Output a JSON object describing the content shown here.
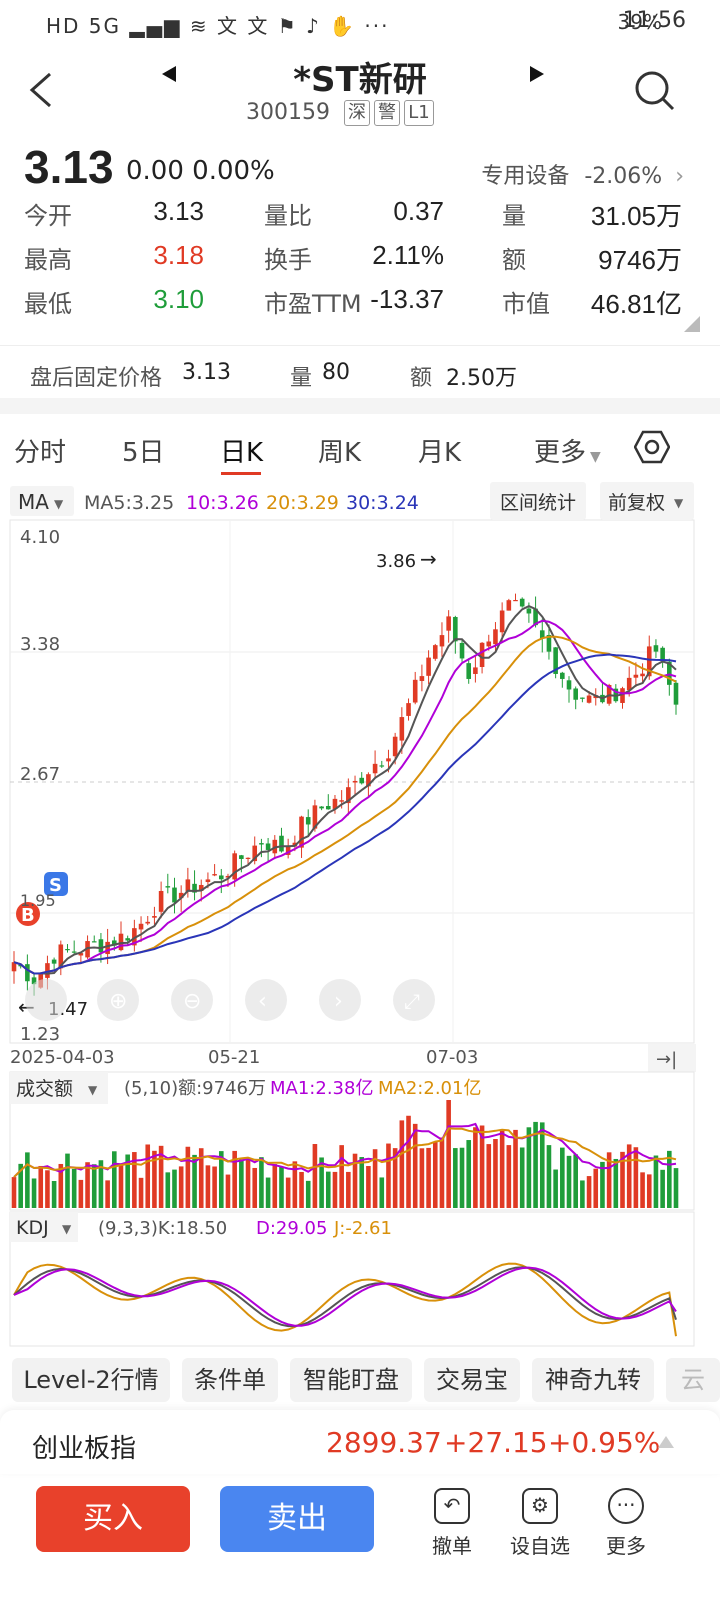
{
  "status": {
    "left_icons": "HD 5G ▂▄▆ ≋ 文 文 ⚑ ♪ ✋ ···",
    "battery": "39%",
    "time": "11:56"
  },
  "header": {
    "title": "*ST新研",
    "code": "300159",
    "tags": [
      "深",
      "警",
      "L1"
    ]
  },
  "quote": {
    "price": "3.13",
    "change": "0.00",
    "change_pct": "0.00%",
    "industry": "专用设备",
    "industry_pct": "-2.06%",
    "rows": [
      [
        {
          "l": "今开",
          "v": "3.13"
        },
        {
          "l": "量比",
          "v": "0.37"
        },
        {
          "l": "量",
          "v": "31.05万"
        }
      ],
      [
        {
          "l": "最高",
          "v": "3.18"
        },
        {
          "l": "换手",
          "v": "2.11%"
        },
        {
          "l": "额",
          "v": "9746万"
        }
      ],
      [
        {
          "l": "最低",
          "v": "3.10"
        },
        {
          "l": "市盈TTM",
          "v": "-13.37"
        },
        {
          "l": "市值",
          "v": "46.81亿"
        }
      ]
    ]
  },
  "afterhours": {
    "label": "盘后固定价格",
    "price": "3.13",
    "vol_label": "量",
    "vol": "80",
    "amt_label": "额",
    "amt": "2.50万"
  },
  "tabs": [
    "分时",
    "5日",
    "日K",
    "周K",
    "月K",
    "更多"
  ],
  "chart": {
    "ma_selector": "MA",
    "ma_legend": [
      "MA5:3.25",
      "10:3.26",
      "20:3.29",
      "30:3.24"
    ],
    "range_btn": "区间统计",
    "adjust_btn": "前复权",
    "price_labels": [
      "4.10",
      "3.38",
      "2.67",
      "1.23"
    ],
    "high_marker": "3.86",
    "low_marker": "1.47",
    "s_marker_value": "1.95",
    "date_labels": [
      "2025-04-03",
      "05-21",
      "07-03"
    ],
    "vol_selector": "成交额",
    "vol_legend": [
      "(5,10)额:9746万",
      "MA1:2.38亿",
      "MA2:2.01亿"
    ],
    "kdj_selector": "KDJ",
    "kdj_legend": [
      "(9,3,3)K:18.50",
      "D:29.05",
      "J:-2.61"
    ]
  },
  "chart_data": {
    "type": "candlestick",
    "x_range": [
      "2025-04-03",
      "2025-08-26"
    ],
    "x_ticks": [
      "2025-04-03",
      "05-21",
      "07-03"
    ],
    "ylim": [
      1.23,
      4.1
    ],
    "y_ticks": [
      4.1,
      3.38,
      2.67,
      1.23
    ],
    "close_path_approx": [
      1.65,
      1.55,
      1.7,
      1.72,
      1.75,
      1.78,
      1.85,
      2.0,
      2.05,
      2.1,
      2.15,
      2.25,
      2.35,
      2.3,
      2.45,
      2.55,
      2.6,
      2.75,
      2.85,
      3.1,
      3.4,
      3.6,
      3.3,
      3.55,
      3.7,
      3.6,
      3.4,
      3.2,
      3.15,
      3.2,
      3.3,
      3.45,
      3.13
    ],
    "markers": {
      "high": 3.86,
      "low": 1.47,
      "buy": "B",
      "sell": "S",
      "sell_price": 1.95
    },
    "indicators": {
      "MA5": 3.25,
      "MA10": 3.26,
      "MA20": 3.29,
      "MA30": 3.24
    },
    "volume_ma": {
      "MA1": "2.38亿",
      "MA2": "2.01亿"
    },
    "kdj": {
      "K": 18.5,
      "D": 29.05,
      "J": -2.61
    }
  },
  "toolbar": [
    "Level-2行情",
    "条件单",
    "智能盯盘",
    "交易宝",
    "神奇九转",
    "云"
  ],
  "index": {
    "name": "创业板指",
    "value": "2899.37",
    "change": "+27.15",
    "pct": "+0.95%"
  },
  "bottom": {
    "buy": "买入",
    "sell": "卖出",
    "actions": [
      "撤单",
      "设自选",
      "更多"
    ]
  },
  "colors": {
    "up": "#e03a24",
    "down": "#1f9d3a",
    "ma5": "#555555",
    "ma10": "#b000d8",
    "ma20": "#d8900a",
    "ma30": "#2a35b8",
    "buy_btn": "#e8412b",
    "sell_btn": "#4a86f0"
  }
}
